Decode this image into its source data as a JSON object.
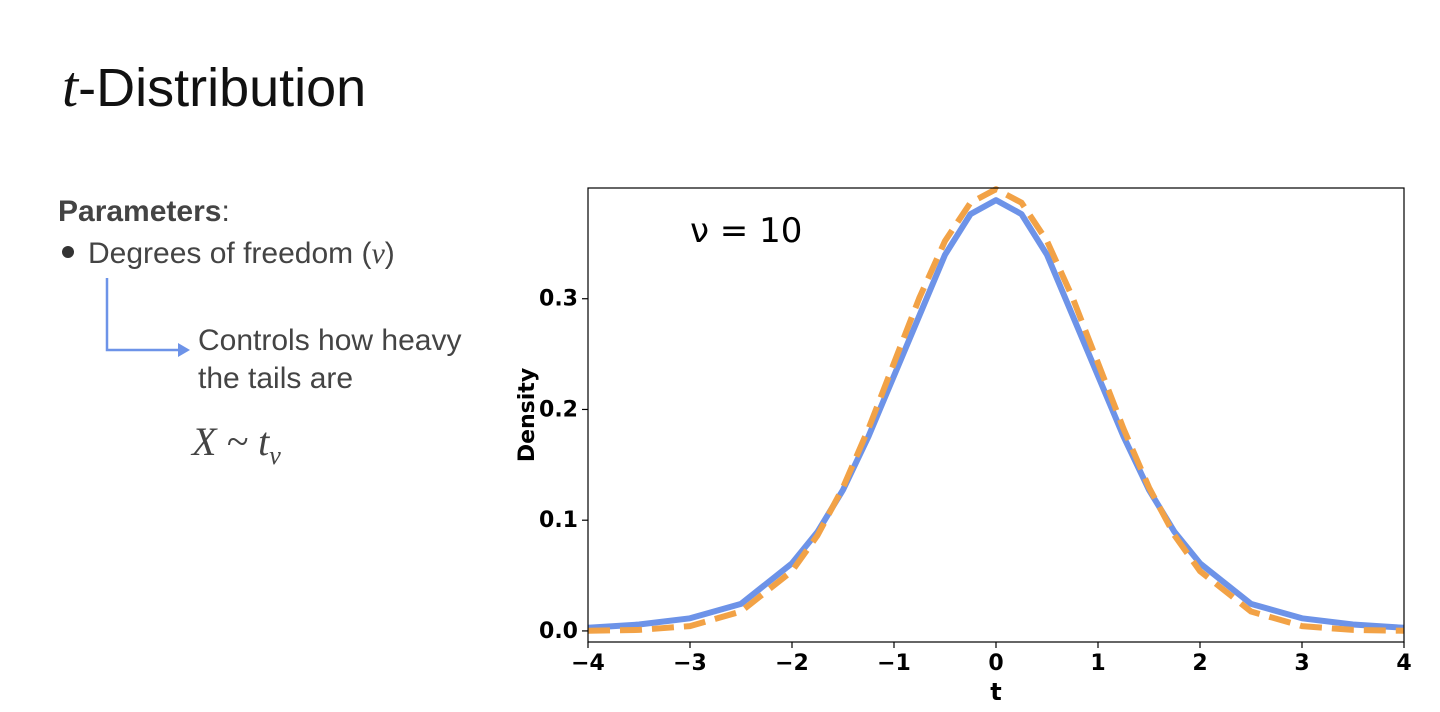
{
  "slide": {
    "title_var": "t",
    "title_rest": "-Distribution",
    "params_label": "Parameters",
    "params_colon": ":",
    "bullet_text": "Degrees of freedom (",
    "bullet_symbol": "ν",
    "bullet_close": ")",
    "note_line1": "Controls how heavy",
    "note_line2": "the tails are",
    "formula_main": "X ~ t",
    "formula_sub": "ν",
    "arrow_color": "#6d93e8"
  },
  "chart_data": {
    "type": "line",
    "annotation": "ν = 10",
    "xlabel": "t",
    "ylabel": "Density",
    "xlim": [
      -4,
      4
    ],
    "ylim": [
      -0.01,
      0.4
    ],
    "xticks": [
      -4,
      -3,
      -2,
      -1,
      0,
      1,
      2,
      3,
      4
    ],
    "xtick_labels": [
      "−4",
      "−3",
      "−2",
      "−1",
      "0",
      "1",
      "2",
      "3",
      "4"
    ],
    "yticks": [
      0.0,
      0.1,
      0.2,
      0.3
    ],
    "ytick_labels": [
      "0.0",
      "0.1",
      "0.2",
      "0.3"
    ],
    "grid": false,
    "series": [
      {
        "style": "solid",
        "color": "#6d93e8",
        "x": [
          -4,
          -3.5,
          -3,
          -2.5,
          -2,
          -1.75,
          -1.5,
          -1.25,
          -1,
          -0.75,
          -0.5,
          -0.25,
          0,
          0.25,
          0.5,
          0.75,
          1,
          1.25,
          1.5,
          1.75,
          2,
          2.5,
          3,
          3.5,
          4
        ],
        "y": [
          0.0028,
          0.0058,
          0.0114,
          0.0244,
          0.0611,
          0.0894,
          0.1274,
          0.1757,
          0.2304,
          0.285,
          0.3397,
          0.3764,
          0.3891,
          0.3764,
          0.3397,
          0.285,
          0.2304,
          0.1757,
          0.1274,
          0.0894,
          0.0611,
          0.0244,
          0.0114,
          0.0058,
          0.0028
        ]
      },
      {
        "style": "dashed",
        "color": "#f2a246",
        "x": [
          -4,
          -3.5,
          -3,
          -2.5,
          -2,
          -1.75,
          -1.5,
          -1.25,
          -1,
          -0.75,
          -0.5,
          -0.25,
          0,
          0.25,
          0.5,
          0.75,
          1,
          1.25,
          1.5,
          1.75,
          2,
          2.5,
          3,
          3.5,
          4
        ],
        "y": [
          0.0001,
          0.0009,
          0.0044,
          0.0175,
          0.054,
          0.0863,
          0.1295,
          0.1826,
          0.242,
          0.3011,
          0.3521,
          0.3867,
          0.3989,
          0.3867,
          0.3521,
          0.3011,
          0.242,
          0.1826,
          0.1295,
          0.0863,
          0.054,
          0.0175,
          0.0044,
          0.0009,
          0.0001
        ]
      }
    ]
  }
}
